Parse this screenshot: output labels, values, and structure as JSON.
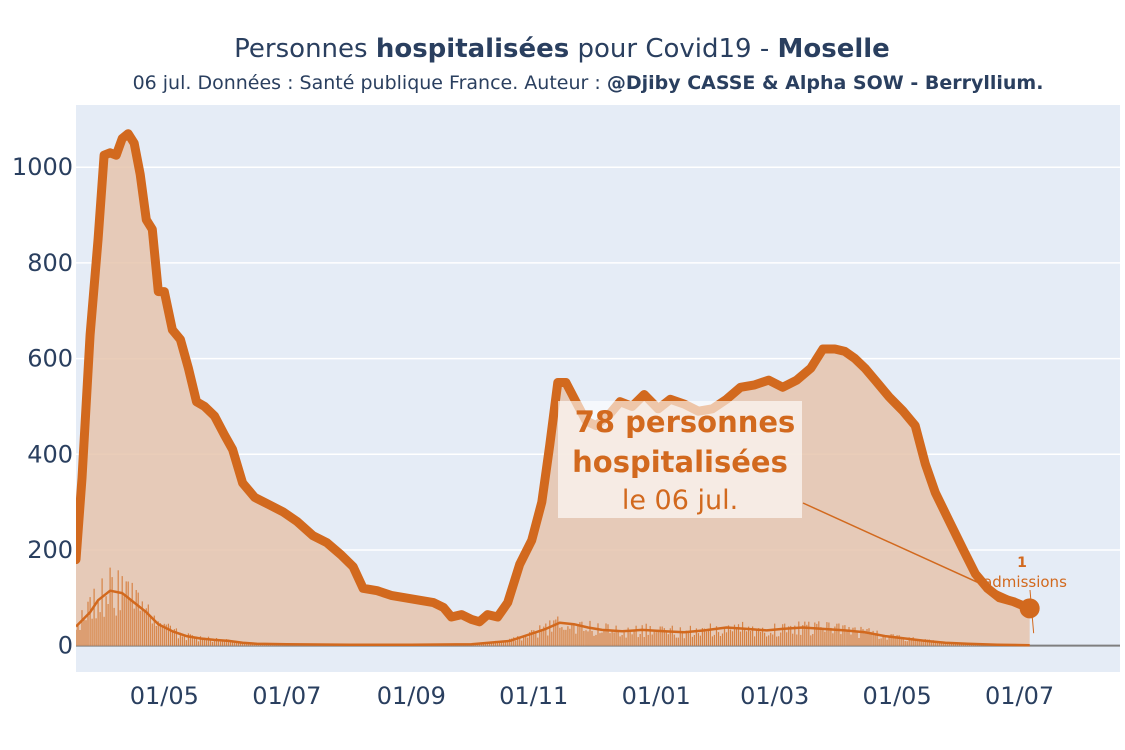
{
  "chart_data": {
    "type": "area",
    "title": {
      "prefix": "Personnes ",
      "bold1": "hospitalisées",
      "middle": " pour Covid19 - ",
      "bold2": "Moselle"
    },
    "subtitle": {
      "prefix": "06 jul. Données : Santé publique France. Auteur : ",
      "bold": "@Djiby CASSE & Alpha SOW - Berryllium."
    },
    "xlabel": "",
    "ylabel": "",
    "x_start": "2020-03-18",
    "x_end": "2021-07-06",
    "xlim": [
      "2020-03-18",
      "2021-08-20"
    ],
    "ylim": [
      -55,
      1130
    ],
    "yticks": [
      0,
      200,
      400,
      600,
      800,
      1000
    ],
    "xticks": [
      {
        "date": "2020-05-01",
        "label": "01/05"
      },
      {
        "date": "2020-07-01",
        "label": "01/07"
      },
      {
        "date": "2020-09-01",
        "label": "01/09"
      },
      {
        "date": "2020-11-01",
        "label": "01/11"
      },
      {
        "date": "2021-01-01",
        "label": "01/01"
      },
      {
        "date": "2021-03-01",
        "label": "01/03"
      },
      {
        "date": "2021-05-01",
        "label": "01/05"
      },
      {
        "date": "2021-07-01",
        "label": "01/07"
      }
    ],
    "series": [
      {
        "name": "hospitalisées",
        "color": "#d2691e",
        "points": [
          [
            "2020-03-18",
            180
          ],
          [
            "2020-03-21",
            350
          ],
          [
            "2020-03-25",
            650
          ],
          [
            "2020-03-29",
            850
          ],
          [
            "2020-04-01",
            1025
          ],
          [
            "2020-04-04",
            1030
          ],
          [
            "2020-04-07",
            1025
          ],
          [
            "2020-04-10",
            1060
          ],
          [
            "2020-04-13",
            1070
          ],
          [
            "2020-04-16",
            1050
          ],
          [
            "2020-04-19",
            985
          ],
          [
            "2020-04-22",
            890
          ],
          [
            "2020-04-25",
            870
          ],
          [
            "2020-04-28",
            740
          ],
          [
            "2020-05-01",
            740
          ],
          [
            "2020-05-05",
            660
          ],
          [
            "2020-05-09",
            640
          ],
          [
            "2020-05-13",
            580
          ],
          [
            "2020-05-17",
            510
          ],
          [
            "2020-05-21",
            500
          ],
          [
            "2020-05-26",
            480
          ],
          [
            "2020-05-31",
            440
          ],
          [
            "2020-06-04",
            410
          ],
          [
            "2020-06-09",
            340
          ],
          [
            "2020-06-15",
            310
          ],
          [
            "2020-06-22",
            295
          ],
          [
            "2020-06-29",
            280
          ],
          [
            "2020-07-06",
            260
          ],
          [
            "2020-07-14",
            230
          ],
          [
            "2020-07-21",
            215
          ],
          [
            "2020-07-28",
            190
          ],
          [
            "2020-08-03",
            165
          ],
          [
            "2020-08-08",
            120
          ],
          [
            "2020-08-15",
            115
          ],
          [
            "2020-08-22",
            105
          ],
          [
            "2020-08-29",
            100
          ],
          [
            "2020-09-05",
            95
          ],
          [
            "2020-09-12",
            90
          ],
          [
            "2020-09-17",
            80
          ],
          [
            "2020-09-21",
            60
          ],
          [
            "2020-09-26",
            65
          ],
          [
            "2020-10-01",
            55
          ],
          [
            "2020-10-05",
            50
          ],
          [
            "2020-10-09",
            65
          ],
          [
            "2020-10-14",
            60
          ],
          [
            "2020-10-19",
            90
          ],
          [
            "2020-10-25",
            170
          ],
          [
            "2020-10-31",
            220
          ],
          [
            "2020-11-05",
            300
          ],
          [
            "2020-11-09",
            420
          ],
          [
            "2020-11-13",
            550
          ],
          [
            "2020-11-17",
            550
          ],
          [
            "2020-11-22",
            510
          ],
          [
            "2020-11-27",
            470
          ],
          [
            "2020-12-02",
            460
          ],
          [
            "2020-12-08",
            480
          ],
          [
            "2020-12-14",
            510
          ],
          [
            "2020-12-20",
            500
          ],
          [
            "2020-12-26",
            525
          ],
          [
            "2021-01-02",
            495
          ],
          [
            "2021-01-08",
            515
          ],
          [
            "2021-01-15",
            505
          ],
          [
            "2021-01-22",
            490
          ],
          [
            "2021-01-29",
            495
          ],
          [
            "2021-02-05",
            515
          ],
          [
            "2021-02-12",
            540
          ],
          [
            "2021-02-19",
            545
          ],
          [
            "2021-02-26",
            555
          ],
          [
            "2021-03-05",
            540
          ],
          [
            "2021-03-12",
            555
          ],
          [
            "2021-03-19",
            580
          ],
          [
            "2021-03-25",
            620
          ],
          [
            "2021-03-31",
            620
          ],
          [
            "2021-04-05",
            615
          ],
          [
            "2021-04-10",
            600
          ],
          [
            "2021-04-15",
            580
          ],
          [
            "2021-04-20",
            555
          ],
          [
            "2021-04-27",
            520
          ],
          [
            "2021-05-04",
            490
          ],
          [
            "2021-05-10",
            460
          ],
          [
            "2021-05-15",
            380
          ],
          [
            "2021-05-20",
            320
          ],
          [
            "2021-05-27",
            260
          ],
          [
            "2021-06-03",
            200
          ],
          [
            "2021-06-09",
            150
          ],
          [
            "2021-06-15",
            120
          ],
          [
            "2021-06-21",
            100
          ],
          [
            "2021-06-28",
            92
          ],
          [
            "2021-07-06",
            78
          ]
        ]
      },
      {
        "name": "admissions",
        "color": "#d2691e",
        "points": [
          [
            "2020-03-18",
            40
          ],
          [
            "2020-03-25",
            70
          ],
          [
            "2020-03-29",
            95
          ],
          [
            "2020-04-04",
            115
          ],
          [
            "2020-04-10",
            110
          ],
          [
            "2020-04-16",
            90
          ],
          [
            "2020-04-22",
            70
          ],
          [
            "2020-04-28",
            45
          ],
          [
            "2020-05-05",
            30
          ],
          [
            "2020-05-12",
            20
          ],
          [
            "2020-05-19",
            15
          ],
          [
            "2020-05-26",
            12
          ],
          [
            "2020-06-02",
            10
          ],
          [
            "2020-06-09",
            6
          ],
          [
            "2020-06-16",
            4
          ],
          [
            "2020-07-01",
            3
          ],
          [
            "2020-08-01",
            2
          ],
          [
            "2020-09-01",
            2
          ],
          [
            "2020-10-01",
            3
          ],
          [
            "2020-10-20",
            10
          ],
          [
            "2020-10-31",
            25
          ],
          [
            "2020-11-07",
            35
          ],
          [
            "2020-11-14",
            48
          ],
          [
            "2020-11-21",
            45
          ],
          [
            "2020-11-28",
            38
          ],
          [
            "2020-12-05",
            33
          ],
          [
            "2020-12-15",
            30
          ],
          [
            "2020-12-25",
            33
          ],
          [
            "2021-01-05",
            30
          ],
          [
            "2021-01-15",
            28
          ],
          [
            "2021-01-25",
            32
          ],
          [
            "2021-02-05",
            38
          ],
          [
            "2021-02-15",
            35
          ],
          [
            "2021-02-25",
            32
          ],
          [
            "2021-03-05",
            35
          ],
          [
            "2021-03-15",
            38
          ],
          [
            "2021-03-25",
            35
          ],
          [
            "2021-04-05",
            32
          ],
          [
            "2021-04-15",
            28
          ],
          [
            "2021-04-25",
            20
          ],
          [
            "2021-05-05",
            15
          ],
          [
            "2021-05-15",
            10
          ],
          [
            "2021-05-25",
            6
          ],
          [
            "2021-06-05",
            4
          ],
          [
            "2021-06-20",
            2
          ],
          [
            "2021-07-06",
            1
          ]
        ]
      }
    ],
    "annotation_main": {
      "line1": "78 personnes",
      "line2": "hospitalisées",
      "line3": "le 06 jul.",
      "value": 78,
      "date": "2021-07-06"
    },
    "annotation_admissions": {
      "value_label": "1",
      "label": "admissions",
      "value": 1,
      "date": "2021-07-06"
    },
    "colors": {
      "accent": "#d2691e",
      "fill": "#e6c4ad",
      "plot_bg": "#e5ecf6",
      "grid": "#ffffff",
      "text": "#2a3f5f"
    },
    "grid": true,
    "legend": "none"
  }
}
